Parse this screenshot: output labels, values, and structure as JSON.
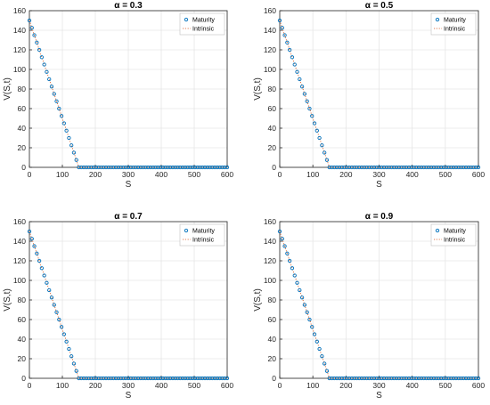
{
  "colors": {
    "marker": "#0072BD",
    "intrinsic": "#D95319",
    "axis": "#262626",
    "grid": "#e6e6e6"
  },
  "chart_data": [
    {
      "type": "scatter",
      "title": "α = 0.3",
      "xlabel": "S",
      "ylabel": "V(S,t)",
      "xlim": [
        0,
        600
      ],
      "ylim": [
        0,
        160
      ],
      "xticks": [
        0,
        100,
        200,
        300,
        400,
        500,
        600
      ],
      "yticks": [
        0,
        20,
        40,
        60,
        80,
        100,
        120,
        140,
        160
      ],
      "grid": true,
      "legend_position": "top-right",
      "series": [
        {
          "name": "Maturity",
          "style": "circle-markers",
          "x_start": 0,
          "x_step": 7.5,
          "x_end": 600,
          "strike": 150
        },
        {
          "name": "Intrinsic",
          "style": "dotted-line",
          "points": [
            [
              0,
              150
            ],
            [
              150,
              0
            ],
            [
              600,
              0
            ]
          ]
        }
      ]
    },
    {
      "type": "scatter",
      "title": "α = 0.5",
      "xlabel": "S",
      "ylabel": "V(S,t)",
      "xlim": [
        0,
        600
      ],
      "ylim": [
        0,
        160
      ],
      "xticks": [
        0,
        100,
        200,
        300,
        400,
        500,
        600
      ],
      "yticks": [
        0,
        20,
        40,
        60,
        80,
        100,
        120,
        140,
        160
      ],
      "grid": true,
      "legend_position": "top-right",
      "series": [
        {
          "name": "Maturity",
          "style": "circle-markers",
          "x_start": 0,
          "x_step": 7.5,
          "x_end": 600,
          "strike": 150
        },
        {
          "name": "Intrinsic",
          "style": "dotted-line",
          "points": [
            [
              0,
              150
            ],
            [
              150,
              0
            ],
            [
              600,
              0
            ]
          ]
        }
      ]
    },
    {
      "type": "scatter",
      "title": "α = 0.7",
      "xlabel": "S",
      "ylabel": "V(S,t)",
      "xlim": [
        0,
        600
      ],
      "ylim": [
        0,
        160
      ],
      "xticks": [
        0,
        100,
        200,
        300,
        400,
        500,
        600
      ],
      "yticks": [
        0,
        20,
        40,
        60,
        80,
        100,
        120,
        140,
        160
      ],
      "grid": true,
      "legend_position": "top-right",
      "series": [
        {
          "name": "Maturity",
          "style": "circle-markers",
          "x_start": 0,
          "x_step": 7.5,
          "x_end": 600,
          "strike": 150
        },
        {
          "name": "Intrinsic",
          "style": "dotted-line",
          "points": [
            [
              0,
              150
            ],
            [
              150,
              0
            ],
            [
              600,
              0
            ]
          ]
        }
      ]
    },
    {
      "type": "scatter",
      "title": "α = 0.9",
      "xlabel": "S",
      "ylabel": "V(S,t)",
      "xlim": [
        0,
        600
      ],
      "ylim": [
        0,
        160
      ],
      "xticks": [
        0,
        100,
        200,
        300,
        400,
        500,
        600
      ],
      "yticks": [
        0,
        20,
        40,
        60,
        80,
        100,
        120,
        140,
        160
      ],
      "grid": true,
      "legend_position": "top-right",
      "series": [
        {
          "name": "Maturity",
          "style": "circle-markers",
          "x_start": 0,
          "x_step": 7.5,
          "x_end": 600,
          "strike": 150
        },
        {
          "name": "Intrinsic",
          "style": "dotted-line",
          "points": [
            [
              0,
              150
            ],
            [
              150,
              0
            ],
            [
              600,
              0
            ]
          ]
        }
      ]
    }
  ]
}
